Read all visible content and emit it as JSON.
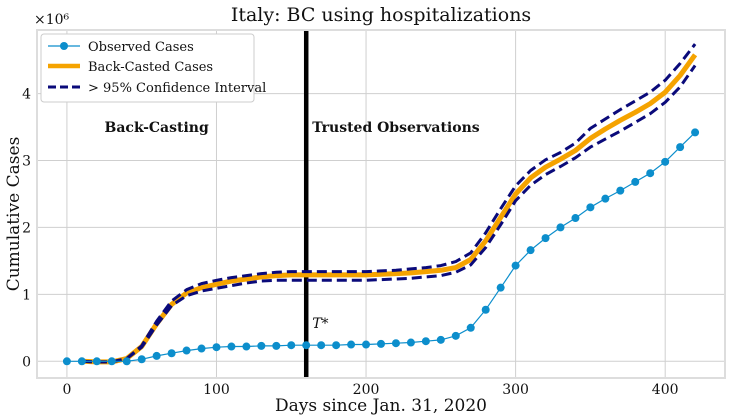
{
  "chart_data": {
    "type": "line",
    "title": "Italy: BC using hospitalizations",
    "xlabel": "Days since Jan. 31, 2020",
    "ylabel": "Cumulative Cases",
    "y_scale_label": "×10⁶",
    "xlim": [
      -20,
      440
    ],
    "ylim": [
      -0.25,
      4.95
    ],
    "xticks": [
      0,
      100,
      200,
      300,
      400
    ],
    "xtick_labels": [
      "0",
      "100",
      "200",
      "300",
      "400"
    ],
    "yticks": [
      0,
      1,
      2,
      3,
      4
    ],
    "ytick_labels": [
      "0",
      "1",
      "2",
      "3",
      "4"
    ],
    "grid": true,
    "legend_position": "top-left",
    "legend": [
      {
        "key": "observed",
        "label": "Observed Cases"
      },
      {
        "key": "backcast",
        "label": "Back-Casted Cases"
      },
      {
        "key": "ci",
        "label": "> 95% Confidence Interval"
      }
    ],
    "vline": {
      "x": 160,
      "label": "T*"
    },
    "regions": [
      {
        "key": "left",
        "label": "Back-Casting",
        "x": 60,
        "y": 3.5
      },
      {
        "key": "right",
        "label": "Trusted Observations",
        "x": 220,
        "y": 3.5
      }
    ],
    "colors": {
      "observed": "#0c8ecc",
      "backcast": "#f5a300",
      "ci": "#0a0a7a",
      "vline": "#000000"
    },
    "series": [
      {
        "name": "Observed Cases",
        "key": "observed",
        "x": [
          0,
          10,
          20,
          30,
          40,
          50,
          60,
          70,
          80,
          90,
          100,
          110,
          120,
          130,
          140,
          150,
          160,
          170,
          180,
          190,
          200,
          210,
          220,
          230,
          240,
          250,
          260,
          270,
          280,
          290,
          300,
          310,
          320,
          330,
          340,
          350,
          360,
          370,
          380,
          390,
          400,
          410,
          420
        ],
        "y": [
          0.0,
          0.0,
          0.0,
          0.0,
          0.0,
          0.03,
          0.08,
          0.12,
          0.16,
          0.19,
          0.21,
          0.22,
          0.22,
          0.23,
          0.23,
          0.24,
          0.24,
          0.24,
          0.24,
          0.25,
          0.25,
          0.26,
          0.27,
          0.28,
          0.3,
          0.32,
          0.38,
          0.5,
          0.77,
          1.1,
          1.43,
          1.66,
          1.84,
          2.0,
          2.14,
          2.3,
          2.43,
          2.55,
          2.68,
          2.81,
          2.98,
          3.2,
          3.42
        ]
      },
      {
        "name": "Back-Casted Cases",
        "key": "backcast",
        "x": [
          10,
          20,
          30,
          40,
          50,
          60,
          70,
          80,
          90,
          100,
          110,
          120,
          130,
          140,
          150,
          160,
          170,
          180,
          190,
          200,
          210,
          220,
          230,
          240,
          250,
          260,
          270,
          280,
          290,
          300,
          310,
          320,
          330,
          340,
          350,
          360,
          370,
          380,
          390,
          400,
          410,
          420
        ],
        "y": [
          0.0,
          -0.01,
          -0.01,
          0.04,
          0.22,
          0.56,
          0.85,
          1.02,
          1.1,
          1.15,
          1.2,
          1.23,
          1.26,
          1.28,
          1.29,
          1.29,
          1.29,
          1.29,
          1.29,
          1.29,
          1.3,
          1.31,
          1.32,
          1.34,
          1.36,
          1.4,
          1.52,
          1.8,
          2.15,
          2.5,
          2.74,
          2.9,
          3.02,
          3.15,
          3.33,
          3.47,
          3.6,
          3.72,
          3.85,
          4.02,
          4.27,
          4.58
        ]
      },
      {
        "name": "CI upper",
        "key": "ci",
        "x": [
          10,
          20,
          30,
          40,
          50,
          60,
          70,
          80,
          90,
          100,
          110,
          120,
          130,
          140,
          150,
          160,
          170,
          180,
          190,
          200,
          210,
          220,
          230,
          240,
          250,
          260,
          270,
          280,
          290,
          300,
          310,
          320,
          330,
          340,
          350,
          360,
          370,
          380,
          390,
          400,
          410,
          420
        ],
        "y": [
          0.0,
          -0.01,
          -0.01,
          0.04,
          0.23,
          0.6,
          0.9,
          1.07,
          1.16,
          1.21,
          1.25,
          1.28,
          1.31,
          1.33,
          1.34,
          1.34,
          1.34,
          1.34,
          1.34,
          1.34,
          1.35,
          1.36,
          1.38,
          1.4,
          1.43,
          1.49,
          1.62,
          1.92,
          2.28,
          2.62,
          2.85,
          3.01,
          3.12,
          3.26,
          3.48,
          3.62,
          3.76,
          3.89,
          4.02,
          4.2,
          4.45,
          4.74
        ]
      },
      {
        "name": "CI lower",
        "key": "ci",
        "x": [
          10,
          20,
          30,
          40,
          50,
          60,
          70,
          80,
          90,
          100,
          110,
          120,
          130,
          140,
          150,
          160,
          170,
          180,
          190,
          200,
          210,
          220,
          230,
          240,
          250,
          260,
          270,
          280,
          290,
          300,
          310,
          320,
          330,
          340,
          350,
          360,
          370,
          380,
          390,
          400,
          410,
          420
        ],
        "y": [
          0.0,
          -0.01,
          -0.01,
          0.04,
          0.21,
          0.54,
          0.83,
          0.98,
          1.05,
          1.09,
          1.13,
          1.17,
          1.2,
          1.21,
          1.21,
          1.21,
          1.21,
          1.21,
          1.21,
          1.21,
          1.22,
          1.23,
          1.24,
          1.26,
          1.28,
          1.33,
          1.44,
          1.7,
          2.04,
          2.4,
          2.63,
          2.79,
          2.91,
          3.04,
          3.2,
          3.32,
          3.44,
          3.57,
          3.7,
          3.87,
          4.1,
          4.42
        ]
      }
    ]
  }
}
